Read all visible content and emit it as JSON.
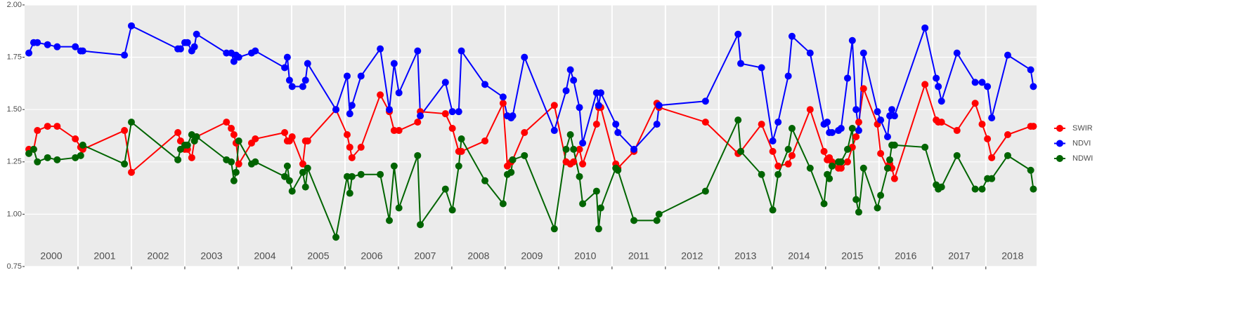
{
  "chart_data": {
    "type": "line",
    "x": [
      2000.08,
      2000.17,
      2000.24,
      2000.43,
      2000.61,
      2000.95,
      2001.05,
      2001.09,
      2001.87,
      2002.0,
      2002.87,
      2002.92,
      2003.0,
      2003.05,
      2003.13,
      2003.18,
      2003.22,
      2003.78,
      2003.87,
      2003.92,
      2003.96,
      2004.01,
      2004.25,
      2004.32,
      2004.87,
      2004.92,
      2004.96,
      2005.01,
      2005.21,
      2005.26,
      2005.3,
      2005.83,
      2006.04,
      2006.09,
      2006.13,
      2006.3,
      2006.66,
      2006.83,
      2006.92,
      2007.01,
      2007.36,
      2007.41,
      2007.88,
      2008.01,
      2008.13,
      2008.18,
      2008.62,
      2008.96,
      2009.04,
      2009.11,
      2009.14,
      2009.36,
      2009.92,
      2010.14,
      2010.22,
      2010.28,
      2010.39,
      2010.45,
      2010.71,
      2010.75,
      2010.79,
      2011.07,
      2011.11,
      2011.41,
      2011.84,
      2011.88,
      2012.75,
      2013.36,
      2013.41,
      2013.8,
      2014.01,
      2014.11,
      2014.3,
      2014.37,
      2014.71,
      2014.97,
      2015.03,
      2015.07,
      2015.12,
      2015.24,
      2015.29,
      2015.41,
      2015.5,
      2015.57,
      2015.62,
      2015.71,
      2015.97,
      2016.03,
      2016.16,
      2016.2,
      2016.24,
      2016.29,
      2016.86,
      2017.07,
      2017.11,
      2017.17,
      2017.46,
      2017.8,
      2017.93,
      2018.03,
      2018.11,
      2018.41,
      2018.84,
      2018.89
    ],
    "series": [
      {
        "name": "SWIR",
        "color": "#ff0000",
        "values": [
          1.31,
          1.31,
          1.4,
          1.42,
          1.42,
          1.36,
          1.32,
          1.31,
          1.4,
          1.2,
          1.39,
          1.35,
          1.31,
          1.31,
          1.27,
          1.35,
          1.37,
          1.44,
          1.41,
          1.38,
          1.34,
          1.24,
          1.34,
          1.36,
          1.39,
          1.35,
          1.35,
          1.37,
          1.24,
          1.35,
          1.35,
          1.5,
          1.38,
          1.32,
          1.27,
          1.32,
          1.57,
          1.49,
          1.4,
          1.4,
          1.44,
          1.49,
          1.48,
          1.41,
          1.3,
          1.3,
          1.35,
          1.53,
          1.23,
          1.25,
          1.26,
          1.39,
          1.52,
          1.25,
          1.24,
          1.25,
          1.31,
          1.24,
          1.43,
          1.51,
          1.51,
          1.24,
          1.22,
          1.3,
          1.53,
          1.51,
          1.44,
          1.29,
          1.3,
          1.43,
          1.3,
          1.23,
          1.24,
          1.28,
          1.5,
          1.3,
          1.26,
          1.27,
          1.25,
          1.22,
          1.22,
          1.25,
          1.32,
          1.37,
          1.44,
          1.6,
          1.43,
          1.29,
          1.22,
          1.24,
          1.22,
          1.17,
          1.62,
          1.45,
          1.44,
          1.44,
          1.4,
          1.53,
          1.43,
          1.36,
          1.27,
          1.38,
          1.42,
          1.42
        ]
      },
      {
        "name": "NDVI",
        "color": "#0000ff",
        "values": [
          1.77,
          1.82,
          1.82,
          1.81,
          1.8,
          1.8,
          1.78,
          1.78,
          1.76,
          1.9,
          1.79,
          1.79,
          1.82,
          1.82,
          1.78,
          1.8,
          1.86,
          1.77,
          1.77,
          1.73,
          1.76,
          1.75,
          1.77,
          1.78,
          1.7,
          1.75,
          1.64,
          1.61,
          1.61,
          1.64,
          1.72,
          1.5,
          1.66,
          1.48,
          1.52,
          1.66,
          1.79,
          1.5,
          1.72,
          1.58,
          1.78,
          1.47,
          1.63,
          1.49,
          1.49,
          1.78,
          1.62,
          1.56,
          1.47,
          1.46,
          1.47,
          1.75,
          1.4,
          1.59,
          1.69,
          1.64,
          1.51,
          1.34,
          1.58,
          1.52,
          1.58,
          1.43,
          1.39,
          1.31,
          1.43,
          1.52,
          1.54,
          1.86,
          1.72,
          1.7,
          1.35,
          1.44,
          1.66,
          1.85,
          1.77,
          1.43,
          1.44,
          1.39,
          1.39,
          1.4,
          1.41,
          1.65,
          1.83,
          1.5,
          1.4,
          1.77,
          1.49,
          1.45,
          1.37,
          1.47,
          1.5,
          1.47,
          1.89,
          1.65,
          1.61,
          1.54,
          1.77,
          1.63,
          1.63,
          1.61,
          1.46,
          1.76,
          1.69,
          1.61
        ]
      },
      {
        "name": "NDWI",
        "color": "#006400",
        "values": [
          1.29,
          1.31,
          1.25,
          1.27,
          1.26,
          1.27,
          1.28,
          1.33,
          1.24,
          1.44,
          1.26,
          1.31,
          1.33,
          1.33,
          1.38,
          1.35,
          1.37,
          1.26,
          1.25,
          1.16,
          1.2,
          1.35,
          1.24,
          1.25,
          1.18,
          1.23,
          1.16,
          1.11,
          1.2,
          1.13,
          1.22,
          0.89,
          1.18,
          1.1,
          1.18,
          1.19,
          1.19,
          0.97,
          1.23,
          1.03,
          1.28,
          0.95,
          1.12,
          1.02,
          1.23,
          1.36,
          1.16,
          1.05,
          1.19,
          1.2,
          1.26,
          1.28,
          0.93,
          1.31,
          1.38,
          1.31,
          1.18,
          1.05,
          1.11,
          0.93,
          1.03,
          1.22,
          1.21,
          0.97,
          0.97,
          1.0,
          1.11,
          1.45,
          1.3,
          1.19,
          1.02,
          1.19,
          1.31,
          1.41,
          1.22,
          1.05,
          1.19,
          1.17,
          1.23,
          1.25,
          1.25,
          1.31,
          1.41,
          1.07,
          1.01,
          1.22,
          1.03,
          1.09,
          1.22,
          1.26,
          1.33,
          1.33,
          1.32,
          1.14,
          1.12,
          1.13,
          1.28,
          1.12,
          1.12,
          1.17,
          1.17,
          1.28,
          1.21,
          1.12
        ]
      }
    ],
    "xlim": [
      2000,
      2018.95
    ],
    "xticks": [
      {
        "value": 2000.5,
        "label": "2000"
      },
      {
        "value": 2001.5,
        "label": "2001"
      },
      {
        "value": 2002.5,
        "label": "2002"
      },
      {
        "value": 2003.5,
        "label": "2003"
      },
      {
        "value": 2004.5,
        "label": "2004"
      },
      {
        "value": 2005.5,
        "label": "2005"
      },
      {
        "value": 2006.5,
        "label": "2006"
      },
      {
        "value": 2007.5,
        "label": "2007"
      },
      {
        "value": 2008.5,
        "label": "2008"
      },
      {
        "value": 2009.5,
        "label": "2009"
      },
      {
        "value": 2010.5,
        "label": "2010"
      },
      {
        "value": 2011.5,
        "label": "2011"
      },
      {
        "value": 2012.5,
        "label": "2012"
      },
      {
        "value": 2013.5,
        "label": "2013"
      },
      {
        "value": 2014.5,
        "label": "2014"
      },
      {
        "value": 2015.5,
        "label": "2015"
      },
      {
        "value": 2016.5,
        "label": "2016"
      },
      {
        "value": 2017.5,
        "label": "2017"
      },
      {
        "value": 2018.5,
        "label": "2018"
      }
    ],
    "x_gridlines": [
      2001,
      2002,
      2003,
      2004,
      2005,
      2006,
      2007,
      2008,
      2009,
      2010,
      2011,
      2012,
      2013,
      2014,
      2015,
      2016,
      2017,
      2018
    ],
    "ylim": [
      0.75,
      2.0
    ],
    "yticks": [
      0.75,
      {
        "value": 1.0,
        "label": "1.00"
      },
      1.25,
      {
        "value": 1.5,
        "label": "1.50"
      },
      1.75,
      {
        "value": 2.0,
        "label": "2.00"
      }
    ],
    "grid": true,
    "legend": "right"
  }
}
